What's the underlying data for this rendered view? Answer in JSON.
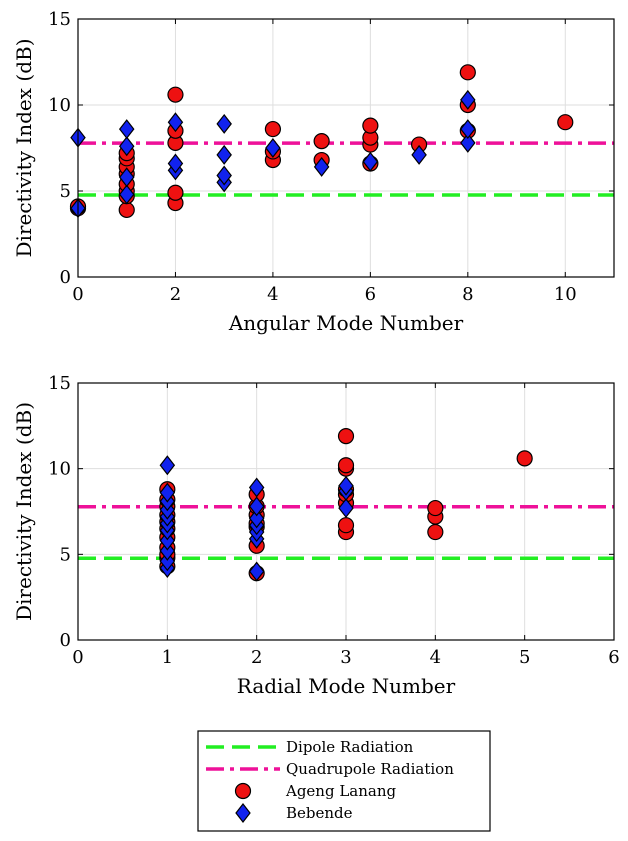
{
  "chart_data": [
    {
      "type": "scatter",
      "xlabel": "Angular Mode Number",
      "ylabel": "Directivity Index (dB)",
      "xlim": [
        0,
        11
      ],
      "ylim": [
        0,
        15
      ],
      "xticks": [
        0,
        2,
        4,
        6,
        8,
        10
      ],
      "yticks": [
        0,
        5,
        10,
        15
      ],
      "grid": true,
      "reference_lines": [
        {
          "name": "Dipole Radiation",
          "y": 4.77,
          "style": "dashed",
          "color": "#22ee22"
        },
        {
          "name": "Quadrupole Radiation",
          "y": 7.78,
          "style": "dash-dot",
          "color": "#ee1199"
        }
      ],
      "series": [
        {
          "name": "Ageng Lanang",
          "marker": "circle",
          "color": "#ee1111",
          "points": [
            [
              0,
              4.0
            ],
            [
              0,
              4.1
            ],
            [
              1,
              3.9
            ],
            [
              1,
              4.7
            ],
            [
              1,
              5.0
            ],
            [
              1,
              5.4
            ],
            [
              1,
              6.0
            ],
            [
              1,
              6.4
            ],
            [
              1,
              6.9
            ],
            [
              1,
              7.2
            ],
            [
              2,
              4.3
            ],
            [
              2,
              4.9
            ],
            [
              2,
              7.8
            ],
            [
              2,
              8.5
            ],
            [
              2,
              10.6
            ],
            [
              4,
              6.8
            ],
            [
              4,
              7.3
            ],
            [
              4,
              8.6
            ],
            [
              5,
              6.8
            ],
            [
              5,
              7.9
            ],
            [
              6,
              6.6
            ],
            [
              6,
              7.7
            ],
            [
              6,
              8.1
            ],
            [
              6,
              8.8
            ],
            [
              7,
              7.7
            ],
            [
              8,
              8.5
            ],
            [
              8,
              10.0
            ],
            [
              8,
              11.9
            ],
            [
              10,
              9.0
            ]
          ]
        },
        {
          "name": "Bebende",
          "marker": "diamond",
          "color": "#1122ee",
          "points": [
            [
              0,
              4.0
            ],
            [
              0,
              8.1
            ],
            [
              1,
              4.8
            ],
            [
              1,
              5.8
            ],
            [
              1,
              7.6
            ],
            [
              1,
              8.6
            ],
            [
              2,
              6.2
            ],
            [
              2,
              6.6
            ],
            [
              2,
              9.0
            ],
            [
              3,
              5.5
            ],
            [
              3,
              5.9
            ],
            [
              3,
              7.1
            ],
            [
              3,
              8.9
            ],
            [
              4,
              7.5
            ],
            [
              5,
              6.4
            ],
            [
              6,
              6.7
            ],
            [
              7,
              7.1
            ],
            [
              8,
              7.8
            ],
            [
              8,
              8.6
            ],
            [
              8,
              10.3
            ]
          ]
        }
      ]
    },
    {
      "type": "scatter",
      "xlabel": "Radial Mode Number",
      "ylabel": "Directivity Index (dB)",
      "xlim": [
        0,
        6
      ],
      "ylim": [
        0,
        15
      ],
      "xticks": [
        0,
        1,
        2,
        3,
        4,
        5,
        6
      ],
      "yticks": [
        0,
        5,
        10,
        15
      ],
      "grid": true,
      "reference_lines": [
        {
          "name": "Dipole Radiation",
          "y": 4.77,
          "style": "dashed",
          "color": "#22ee22"
        },
        {
          "name": "Quadrupole Radiation",
          "y": 7.78,
          "style": "dash-dot",
          "color": "#ee1199"
        }
      ],
      "series": [
        {
          "name": "Ageng Lanang",
          "marker": "circle",
          "color": "#ee1111",
          "points": [
            [
              1,
              4.3
            ],
            [
              1,
              4.8
            ],
            [
              1,
              5.0
            ],
            [
              1,
              5.4
            ],
            [
              1,
              6.0
            ],
            [
              1,
              6.5
            ],
            [
              1,
              6.9
            ],
            [
              1,
              7.3
            ],
            [
              1,
              7.8
            ],
            [
              1,
              8.2
            ],
            [
              1,
              8.8
            ],
            [
              2,
              3.9
            ],
            [
              2,
              5.5
            ],
            [
              2,
              6.6
            ],
            [
              2,
              6.8
            ],
            [
              2,
              7.3
            ],
            [
              2,
              7.8
            ],
            [
              2,
              8.5
            ],
            [
              3,
              6.3
            ],
            [
              3,
              6.7
            ],
            [
              3,
              8.0
            ],
            [
              3,
              8.5
            ],
            [
              3,
              8.8
            ],
            [
              3,
              10.0
            ],
            [
              3,
              10.2
            ],
            [
              3,
              11.9
            ],
            [
              4,
              6.3
            ],
            [
              4,
              7.2
            ],
            [
              4,
              7.7
            ],
            [
              5,
              10.6
            ]
          ]
        },
        {
          "name": "Bebende",
          "marker": "diamond",
          "color": "#1122ee",
          "points": [
            [
              1,
              4.2
            ],
            [
              1,
              4.6
            ],
            [
              1,
              5.2
            ],
            [
              1,
              5.8
            ],
            [
              1,
              6.4
            ],
            [
              1,
              6.8
            ],
            [
              1,
              7.2
            ],
            [
              1,
              7.6
            ],
            [
              1,
              8.1
            ],
            [
              1,
              8.6
            ],
            [
              1,
              10.2
            ],
            [
              2,
              4.0
            ],
            [
              2,
              5.9
            ],
            [
              2,
              6.3
            ],
            [
              2,
              6.7
            ],
            [
              2,
              7.1
            ],
            [
              2,
              7.8
            ],
            [
              2,
              8.9
            ],
            [
              3,
              7.7
            ],
            [
              3,
              8.7
            ],
            [
              3,
              9.0
            ]
          ]
        }
      ]
    }
  ],
  "legend": {
    "placement": "bottom-center",
    "entries": [
      {
        "label": "Dipole Radiation",
        "kind": "line",
        "style": "dashed",
        "color": "#22ee22"
      },
      {
        "label": "Quadrupole Radiation",
        "kind": "line",
        "style": "dash-dot",
        "color": "#ee1199"
      },
      {
        "label": "Ageng Lanang",
        "kind": "marker",
        "marker": "circle",
        "color": "#ee1111"
      },
      {
        "label": "Bebende",
        "kind": "marker",
        "marker": "diamond",
        "color": "#1122ee"
      }
    ]
  }
}
